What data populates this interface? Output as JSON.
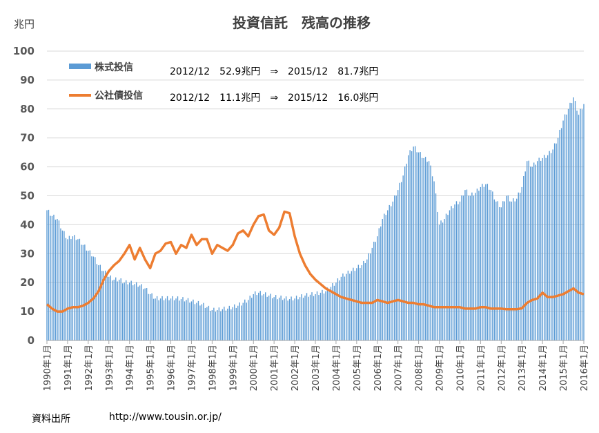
{
  "chart_data": {
    "type": "bar",
    "title": "投資信託　残高の推移",
    "ylabel": "兆円",
    "ylim": [
      0,
      100
    ],
    "yticks": [
      "0",
      "10",
      "20",
      "30",
      "40",
      "50",
      "60",
      "70",
      "80",
      "90",
      "100"
    ],
    "x_labels": [
      "1990年1月",
      "1991年1月",
      "1992年1月",
      "1993年1月",
      "1994年1月",
      "1995年1月",
      "1996年1月",
      "1997年1月",
      "1998年1月",
      "1999年1月",
      "2000年1月",
      "2001年1月",
      "2002年1月",
      "2003年1月",
      "2004年1月",
      "2005年1月",
      "2006年1月",
      "2007年1月",
      "2008年1月",
      "2009年1月",
      "2010年1月",
      "2011年1月",
      "2012年1月",
      "2013年1月",
      "2014年1月",
      "2015年1月",
      "2016年1月"
    ],
    "x_start": "1990-01",
    "x_end": "2016-01",
    "grid": true,
    "legend": "top-left",
    "series": [
      {
        "name": "株式投信",
        "kind": "bar",
        "color": "#5b9bd5",
        "points": [
          [
            "1990-01",
            45
          ],
          [
            "1990-04",
            43
          ],
          [
            "1990-07",
            42
          ],
          [
            "1990-10",
            38
          ],
          [
            "1991-01",
            35
          ],
          [
            "1991-04",
            36
          ],
          [
            "1991-07",
            35
          ],
          [
            "1991-10",
            33
          ],
          [
            "1992-01",
            31
          ],
          [
            "1992-04",
            29
          ],
          [
            "1992-07",
            26
          ],
          [
            "1992-10",
            24
          ],
          [
            "1993-01",
            22
          ],
          [
            "1993-04",
            21
          ],
          [
            "1993-07",
            21
          ],
          [
            "1993-10",
            20
          ],
          [
            "1994-01",
            20
          ],
          [
            "1994-04",
            19.5
          ],
          [
            "1994-07",
            19
          ],
          [
            "1994-10",
            18
          ],
          [
            "1995-01",
            16
          ],
          [
            "1995-04",
            14.5
          ],
          [
            "1995-07",
            14.5
          ],
          [
            "1995-10",
            14.5
          ],
          [
            "1996-01",
            14.5
          ],
          [
            "1996-04",
            14.5
          ],
          [
            "1996-07",
            14.3
          ],
          [
            "1996-10",
            14
          ],
          [
            "1997-01",
            13.5
          ],
          [
            "1997-04",
            13
          ],
          [
            "1997-07",
            12.5
          ],
          [
            "1997-10",
            11.5
          ],
          [
            "1998-01",
            10.5
          ],
          [
            "1998-04",
            10.5
          ],
          [
            "1998-07",
            10.8
          ],
          [
            "1998-10",
            11
          ],
          [
            "1999-01",
            11.5
          ],
          [
            "1999-04",
            12
          ],
          [
            "1999-07",
            13
          ],
          [
            "1999-10",
            14
          ],
          [
            "2000-01",
            16
          ],
          [
            "2000-04",
            16.5
          ],
          [
            "2000-07",
            16
          ],
          [
            "2000-10",
            15.5
          ],
          [
            "2001-01",
            15
          ],
          [
            "2001-04",
            14.8
          ],
          [
            "2001-07",
            14.5
          ],
          [
            "2001-10",
            14.3
          ],
          [
            "2002-01",
            14.5
          ],
          [
            "2002-04",
            15
          ],
          [
            "2002-07",
            15.5
          ],
          [
            "2002-10",
            15.8
          ],
          [
            "2003-01",
            16
          ],
          [
            "2003-04",
            16.5
          ],
          [
            "2003-07",
            17
          ],
          [
            "2003-10",
            18.5
          ],
          [
            "2004-01",
            20
          ],
          [
            "2004-04",
            22
          ],
          [
            "2004-07",
            23
          ],
          [
            "2004-10",
            24
          ],
          [
            "2005-01",
            25
          ],
          [
            "2005-04",
            26
          ],
          [
            "2005-07",
            28
          ],
          [
            "2005-10",
            32
          ],
          [
            "2006-01",
            36
          ],
          [
            "2006-04",
            42
          ],
          [
            "2006-07",
            45
          ],
          [
            "2006-10",
            48
          ],
          [
            "2007-01",
            52
          ],
          [
            "2007-04",
            57
          ],
          [
            "2007-07",
            64
          ],
          [
            "2007-10",
            67
          ],
          [
            "2008-01",
            65
          ],
          [
            "2008-04",
            63
          ],
          [
            "2008-07",
            62
          ],
          [
            "2008-10",
            55
          ],
          [
            "2009-01",
            40
          ],
          [
            "2009-04",
            42
          ],
          [
            "2009-07",
            45
          ],
          [
            "2009-10",
            47
          ],
          [
            "2010-01",
            48
          ],
          [
            "2010-04",
            52
          ],
          [
            "2010-07",
            50
          ],
          [
            "2010-10",
            51
          ],
          [
            "2011-01",
            53
          ],
          [
            "2011-04",
            54
          ],
          [
            "2011-07",
            52
          ],
          [
            "2011-10",
            48
          ],
          [
            "2012-01",
            46
          ],
          [
            "2012-04",
            50
          ],
          [
            "2012-07",
            48
          ],
          [
            "2012-10",
            49
          ],
          [
            "2013-01",
            53
          ],
          [
            "2013-04",
            62
          ],
          [
            "2013-07",
            60
          ],
          [
            "2013-10",
            62
          ],
          [
            "2014-01",
            63
          ],
          [
            "2014-04",
            64
          ],
          [
            "2014-07",
            66
          ],
          [
            "2014-10",
            70
          ],
          [
            "2015-01",
            76
          ],
          [
            "2015-04",
            80
          ],
          [
            "2015-07",
            84
          ],
          [
            "2015-10",
            78
          ],
          [
            "2016-01",
            81.7
          ]
        ]
      },
      {
        "name": "公社債投信",
        "kind": "line",
        "color": "#ed7d31",
        "points": [
          [
            "1990-01",
            12.5
          ],
          [
            "1990-04",
            11
          ],
          [
            "1990-07",
            10
          ],
          [
            "1990-10",
            10
          ],
          [
            "1991-01",
            11
          ],
          [
            "1991-04",
            11.5
          ],
          [
            "1991-07",
            11.5
          ],
          [
            "1991-10",
            12
          ],
          [
            "1992-01",
            13
          ],
          [
            "1992-04",
            14.5
          ],
          [
            "1992-07",
            17
          ],
          [
            "1992-10",
            21
          ],
          [
            "1993-01",
            24
          ],
          [
            "1993-04",
            26
          ],
          [
            "1993-07",
            27.5
          ],
          [
            "1993-10",
            30
          ],
          [
            "1994-01",
            33
          ],
          [
            "1994-04",
            28
          ],
          [
            "1994-07",
            32
          ],
          [
            "1994-10",
            28
          ],
          [
            "1995-01",
            25
          ],
          [
            "1995-04",
            30
          ],
          [
            "1995-07",
            31
          ],
          [
            "1995-10",
            33.5
          ],
          [
            "1996-01",
            34
          ],
          [
            "1996-04",
            30
          ],
          [
            "1996-07",
            33
          ],
          [
            "1996-10",
            32
          ],
          [
            "1997-01",
            36.5
          ],
          [
            "1997-04",
            33
          ],
          [
            "1997-07",
            35
          ],
          [
            "1997-10",
            35
          ],
          [
            "1998-01",
            30
          ],
          [
            "1998-04",
            33
          ],
          [
            "1998-07",
            32
          ],
          [
            "1998-10",
            31
          ],
          [
            "1999-01",
            33
          ],
          [
            "1999-04",
            37
          ],
          [
            "1999-07",
            38
          ],
          [
            "1999-10",
            36
          ],
          [
            "2000-01",
            40
          ],
          [
            "2000-04",
            43
          ],
          [
            "2000-07",
            43.5
          ],
          [
            "2000-10",
            38
          ],
          [
            "2001-01",
            36.5
          ],
          [
            "2001-04",
            39
          ],
          [
            "2001-07",
            44.5
          ],
          [
            "2001-10",
            44
          ],
          [
            "2002-01",
            36
          ],
          [
            "2002-04",
            30
          ],
          [
            "2002-07",
            26
          ],
          [
            "2002-10",
            23
          ],
          [
            "2003-01",
            21
          ],
          [
            "2003-04",
            19.5
          ],
          [
            "2003-07",
            18
          ],
          [
            "2003-10",
            17
          ],
          [
            "2004-01",
            16
          ],
          [
            "2004-04",
            15
          ],
          [
            "2004-07",
            14.5
          ],
          [
            "2004-10",
            14
          ],
          [
            "2005-01",
            13.5
          ],
          [
            "2005-04",
            13
          ],
          [
            "2005-07",
            13
          ],
          [
            "2005-10",
            13
          ],
          [
            "2006-01",
            14
          ],
          [
            "2006-04",
            13.5
          ],
          [
            "2006-07",
            13
          ],
          [
            "2006-10",
            13.5
          ],
          [
            "2007-01",
            14
          ],
          [
            "2007-04",
            13.5
          ],
          [
            "2007-07",
            13
          ],
          [
            "2007-10",
            13
          ],
          [
            "2008-01",
            12.5
          ],
          [
            "2008-04",
            12.5
          ],
          [
            "2008-07",
            12
          ],
          [
            "2008-10",
            11.5
          ],
          [
            "2009-01",
            11.5
          ],
          [
            "2009-04",
            11.5
          ],
          [
            "2009-07",
            11.5
          ],
          [
            "2009-10",
            11.5
          ],
          [
            "2010-01",
            11.5
          ],
          [
            "2010-04",
            11
          ],
          [
            "2010-07",
            11
          ],
          [
            "2010-10",
            11
          ],
          [
            "2011-01",
            11.5
          ],
          [
            "2011-04",
            11.5
          ],
          [
            "2011-07",
            11
          ],
          [
            "2011-10",
            11
          ],
          [
            "2012-01",
            11
          ],
          [
            "2012-04",
            10.8
          ],
          [
            "2012-07",
            10.8
          ],
          [
            "2012-10",
            10.8
          ],
          [
            "2013-01",
            11.1
          ],
          [
            "2013-04",
            13
          ],
          [
            "2013-07",
            14
          ],
          [
            "2013-10",
            14.5
          ],
          [
            "2014-01",
            16.5
          ],
          [
            "2014-04",
            15
          ],
          [
            "2014-07",
            15
          ],
          [
            "2014-10",
            15.5
          ],
          [
            "2015-01",
            16
          ],
          [
            "2015-04",
            17
          ],
          [
            "2015-07",
            18
          ],
          [
            "2015-10",
            16.5
          ],
          [
            "2016-01",
            16
          ]
        ]
      }
    ],
    "annotations": [
      "2012/12　52.9兆円　⇒　2015/12　81.7兆円",
      "2012/12　11.1兆円　⇒　2015/12　16.0兆円"
    ]
  },
  "source_label": "資料出所",
  "source_url": "http://www.tousin.or.jp/"
}
